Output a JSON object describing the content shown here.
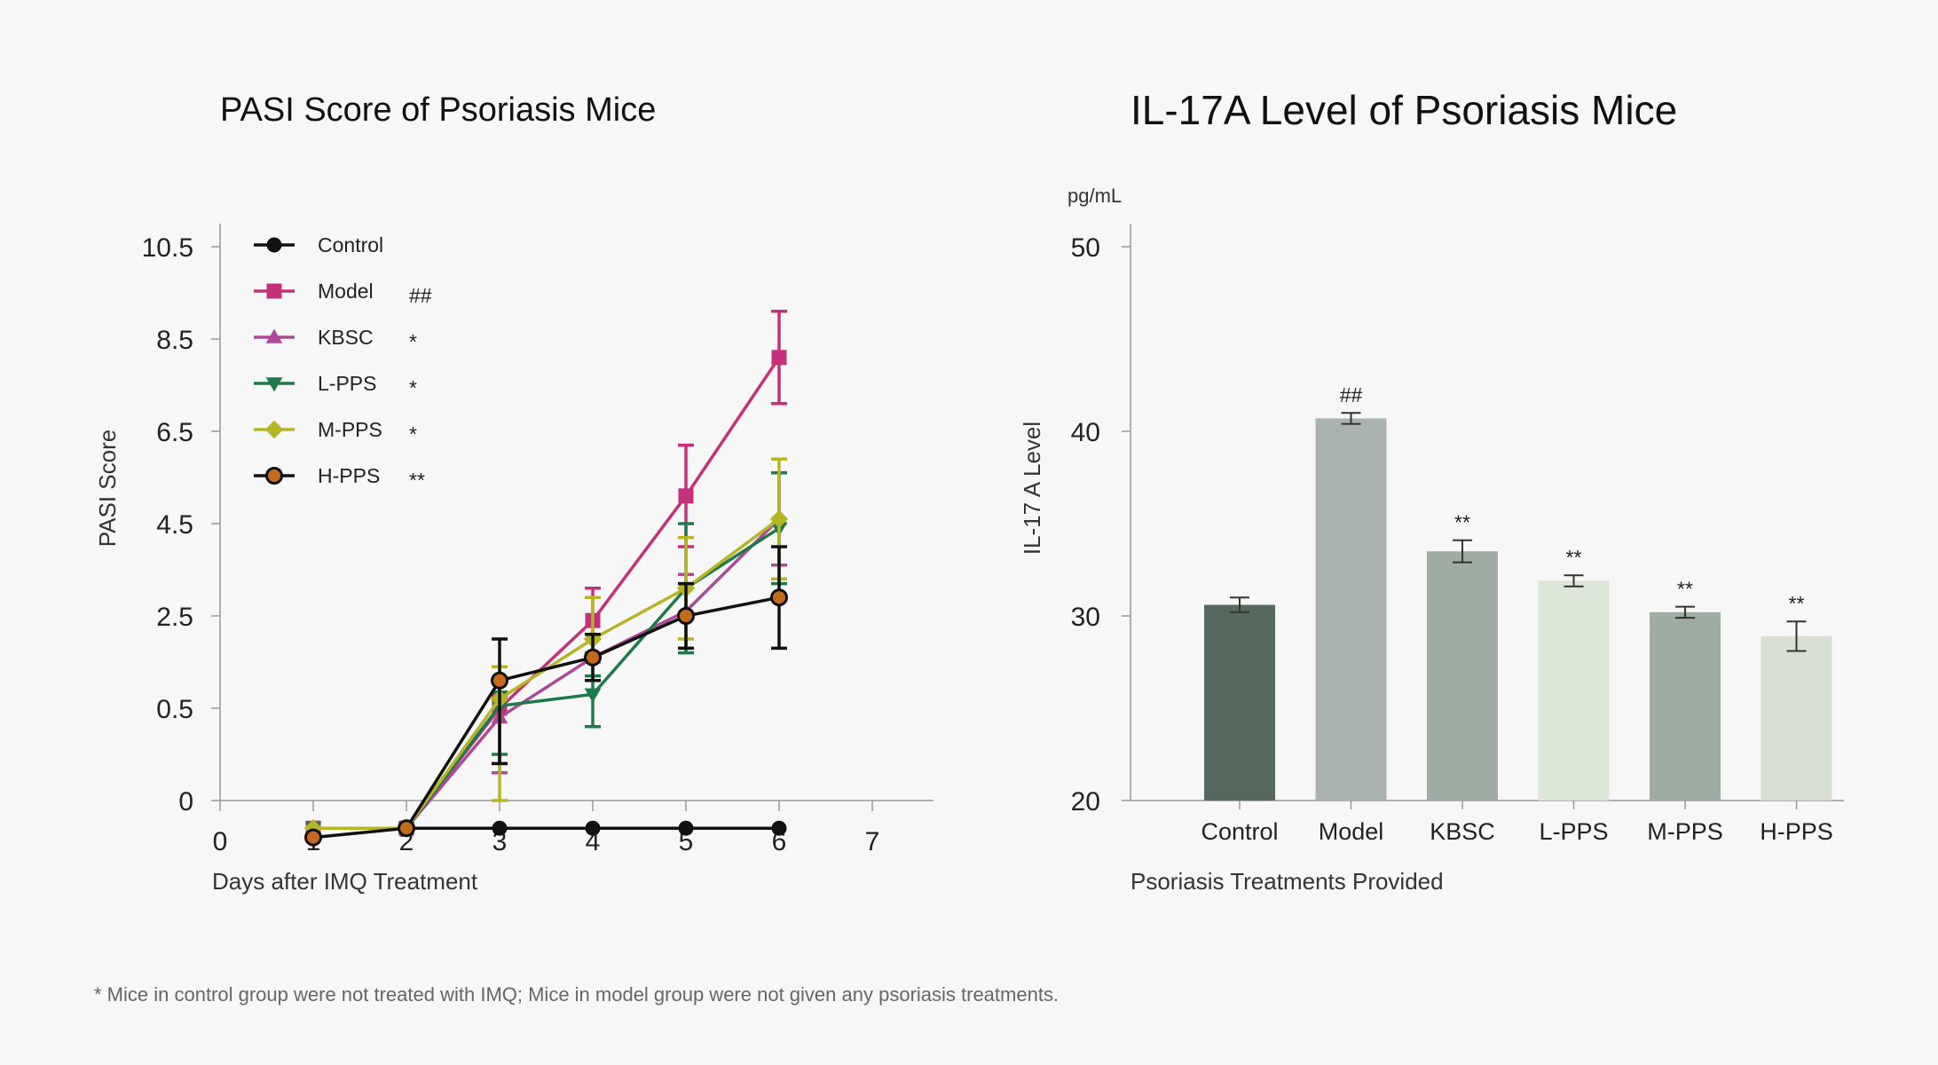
{
  "footnote": "* Mice in control group were not treated with IMQ; Mice in model group were not given any psoriasis treatments.",
  "chart_data": [
    {
      "type": "line",
      "title": "PASI Score of Psoriasis Mice",
      "xlabel": "Days after IMQ Treatment",
      "ylabel": "PASI Score",
      "xlim": [
        0,
        7.6
      ],
      "x_ticks": [
        0,
        1,
        2,
        3,
        4,
        5,
        6,
        7
      ],
      "y_ticks": [
        0,
        0.5,
        2.5,
        4.5,
        6.5,
        8.5,
        10.5
      ],
      "y_tick_labels": [
        "0",
        "0.5",
        "2.5",
        "4.5",
        "6.5",
        "8.5",
        "10.5"
      ],
      "legend_position": "top-left",
      "series": [
        {
          "name": "Control",
          "sig": "",
          "color": "#111111",
          "marker": "circle",
          "x": [
            1,
            2,
            3,
            4,
            5,
            6
          ],
          "values": [
            -0.15,
            -0.15,
            -0.15,
            -0.15,
            -0.15,
            -0.15
          ],
          "errors": [
            0,
            0,
            0,
            0,
            0,
            0
          ]
        },
        {
          "name": "Model",
          "sig": "##",
          "color": "#c6307a",
          "marker": "square",
          "x": [
            1,
            2,
            3,
            4,
            5,
            6
          ],
          "values": [
            -0.15,
            -0.15,
            0.5,
            2.4,
            5.1,
            8.1
          ],
          "errors": [
            0,
            0,
            0.3,
            0.7,
            1.1,
            1.0
          ]
        },
        {
          "name": "KBSC",
          "sig": "*",
          "color": "#b04898",
          "marker": "triangle-up",
          "x": [
            1,
            2,
            3,
            4,
            5,
            6
          ],
          "values": [
            -0.15,
            -0.15,
            0.45,
            1.6,
            2.6,
            4.6
          ],
          "errors": [
            0,
            0,
            0.3,
            0.5,
            0.8,
            1.0
          ]
        },
        {
          "name": "L-PPS",
          "sig": "*",
          "color": "#1e7a4c",
          "marker": "triangle-down",
          "x": [
            1,
            2,
            3,
            4,
            5,
            6
          ],
          "values": [
            -0.15,
            -0.15,
            0.55,
            0.8,
            3.1,
            4.4
          ],
          "errors": [
            0,
            0,
            0.3,
            0.4,
            1.4,
            1.2
          ]
        },
        {
          "name": "M-PPS",
          "sig": "*",
          "color": "#b5b526",
          "marker": "diamond",
          "x": [
            1,
            2,
            3,
            4,
            5,
            6
          ],
          "values": [
            -0.15,
            -0.15,
            0.7,
            2.0,
            3.1,
            4.6
          ],
          "errors": [
            0,
            0,
            0.7,
            0.9,
            1.1,
            1.3
          ]
        },
        {
          "name": "H-PPS",
          "sig": "**",
          "color": "#111111",
          "marker": "circle",
          "fill": "#c46a1c",
          "x": [
            1,
            2,
            3,
            4,
            5,
            6
          ],
          "values": [
            -0.2,
            -0.15,
            1.1,
            1.6,
            2.5,
            2.9
          ],
          "errors": [
            0,
            0,
            0.9,
            0.5,
            0.7,
            1.1
          ]
        }
      ]
    },
    {
      "type": "bar",
      "title": "IL-17A Level of Psoriasis Mice",
      "unit_label": "pg/mL",
      "xlabel": "Psoriasis Treatments Provided",
      "ylabel": "IL-17 A Level",
      "ylim": [
        20,
        51
      ],
      "y_ticks": [
        20,
        30,
        40,
        50
      ],
      "categories": [
        "Control",
        "Model",
        "KBSC",
        "L-PPS",
        "M-PPS",
        "H-PPS"
      ],
      "values": [
        30.6,
        40.7,
        33.5,
        31.9,
        30.2,
        28.9
      ],
      "errors": [
        0.4,
        0.3,
        0.6,
        0.3,
        0.3,
        0.8
      ],
      "significance": [
        "",
        "##",
        "**",
        "**",
        "**",
        "**"
      ],
      "bar_colors": [
        "#55695e",
        "#aab3ad",
        "#9eaca3",
        "#dbe6d7",
        "#9eada4",
        "#d7e0d3"
      ]
    }
  ]
}
